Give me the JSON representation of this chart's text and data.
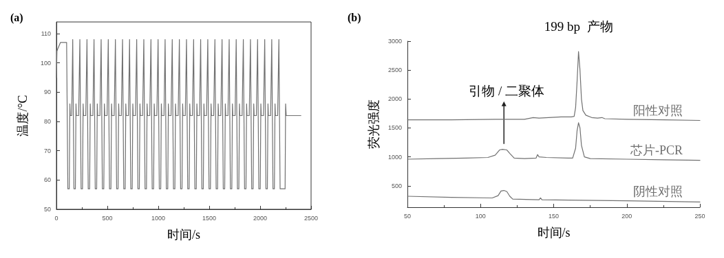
{
  "chart_data": [
    {
      "type": "line",
      "title": "(a)",
      "xlabel": "时间/s",
      "ylabel": "温度/°C",
      "xlim": [
        0,
        2500
      ],
      "xticks": [
        0,
        500,
        1000,
        1500,
        2000,
        2500
      ],
      "ylim": [
        50,
        114
      ],
      "yticks": [
        50,
        60,
        70,
        80,
        90,
        100,
        110
      ],
      "grid": false,
      "color": "#707070",
      "x": [
        0,
        5,
        15,
        40,
        100,
        112,
        126,
        132,
        136,
        150,
        160,
        172,
        186,
        192,
        196,
        218,
        230,
        242,
        256,
        262,
        266,
        288,
        300,
        312,
        326,
        332,
        336,
        358,
        369,
        381,
        395,
        401,
        405,
        427,
        439,
        451,
        465,
        471,
        475,
        497,
        509,
        521,
        535,
        541,
        545,
        567,
        579,
        591,
        605,
        611,
        615,
        637,
        649,
        661,
        675,
        681,
        685,
        707,
        718,
        730,
        744,
        750,
        754,
        776,
        788,
        800,
        814,
        820,
        824,
        846,
        858,
        870,
        884,
        890,
        894,
        916,
        928,
        940,
        954,
        960,
        964,
        986,
        998,
        1010,
        1024,
        1030,
        1034,
        1056,
        1067,
        1079,
        1093,
        1099,
        1103,
        1125,
        1137,
        1149,
        1163,
        1169,
        1173,
        1195,
        1207,
        1219,
        1233,
        1239,
        1243,
        1265,
        1277,
        1289,
        1303,
        1309,
        1313,
        1335,
        1347,
        1359,
        1373,
        1379,
        1383,
        1405,
        1416,
        1428,
        1442,
        1448,
        1452,
        1474,
        1486,
        1498,
        1512,
        1518,
        1522,
        1544,
        1556,
        1568,
        1582,
        1588,
        1592,
        1614,
        1626,
        1638,
        1652,
        1658,
        1662,
        1684,
        1696,
        1708,
        1722,
        1728,
        1732,
        1754,
        1765,
        1777,
        1791,
        1797,
        1801,
        1823,
        1835,
        1847,
        1861,
        1867,
        1871,
        1893,
        1905,
        1917,
        1931,
        1937,
        1941,
        1963,
        1975,
        1987,
        2001,
        2007,
        2011,
        2033,
        2045,
        2057,
        2071,
        2077,
        2081,
        2103,
        2114,
        2126,
        2140,
        2146,
        2150,
        2172,
        2184,
        2196,
        2245,
        2250,
        2256,
        2400
      ],
      "values": [
        95,
        104,
        105,
        107,
        107,
        57,
        57,
        86,
        82,
        82,
        108,
        57,
        57,
        86,
        82,
        82,
        108,
        57,
        57,
        86,
        82,
        82,
        108,
        57,
        57,
        86,
        82,
        82,
        108,
        57,
        57,
        86,
        82,
        82,
        108,
        57,
        57,
        86,
        82,
        82,
        108,
        57,
        57,
        86,
        82,
        82,
        108,
        57,
        57,
        86,
        82,
        82,
        108,
        57,
        57,
        86,
        82,
        82,
        108,
        57,
        57,
        86,
        82,
        82,
        108,
        57,
        57,
        86,
        82,
        82,
        108,
        57,
        57,
        86,
        82,
        82,
        108,
        57,
        57,
        86,
        82,
        82,
        108,
        57,
        57,
        86,
        82,
        82,
        108,
        57,
        57,
        86,
        82,
        82,
        108,
        57,
        57,
        86,
        82,
        82,
        108,
        57,
        57,
        86,
        82,
        82,
        108,
        57,
        57,
        86,
        82,
        82,
        108,
        57,
        57,
        86,
        82,
        82,
        108,
        57,
        57,
        86,
        82,
        82,
        108,
        57,
        57,
        86,
        82,
        82,
        108,
        57,
        57,
        86,
        82,
        82,
        108,
        57,
        57,
        86,
        82,
        82,
        108,
        57,
        57,
        86,
        82,
        82,
        108,
        57,
        57,
        86,
        82,
        82,
        108,
        57,
        57,
        86,
        82,
        82,
        108,
        57,
        57,
        86,
        82,
        82,
        108,
        57,
        57,
        86,
        82,
        82,
        108,
        57,
        57,
        86,
        82,
        82,
        108,
        57,
        57,
        86,
        82,
        82,
        108,
        57,
        57,
        86,
        82,
        82
      ]
    },
    {
      "type": "line",
      "title": "(b)",
      "xlabel": "时间/s",
      "ylabel": "荧光强度",
      "xlim": [
        50,
        250
      ],
      "xticks": [
        50,
        100,
        150,
        200,
        250
      ],
      "ylim": [
        130,
        3000
      ],
      "yticks": [
        500,
        1000,
        1500,
        2000,
        2500,
        3000
      ],
      "grid": false,
      "annotations": [
        {
          "text": "引物 / 二聚体",
          "x": 116,
          "y": 1130
        },
        {
          "text": "199 bp  产物",
          "x": 167,
          "y": 2820
        }
      ],
      "series": [
        {
          "name": "阳性对照",
          "color": "#707070",
          "x": [
            50,
            80,
            110,
            130,
            136,
            140,
            155,
            162,
            164,
            165,
            166,
            167,
            168,
            169,
            170,
            172,
            176,
            180,
            183,
            185,
            200,
            225,
            250
          ],
          "values": [
            1640,
            1640,
            1650,
            1650,
            1680,
            1670,
            1690,
            1690,
            1700,
            1850,
            2300,
            2820,
            2500,
            2000,
            1800,
            1720,
            1680,
            1670,
            1680,
            1660,
            1650,
            1640,
            1630
          ]
        },
        {
          "name": "芯片-PCR",
          "color": "#707070",
          "x": [
            50,
            70,
            90,
            105,
            110,
            113,
            115,
            118,
            120,
            123,
            130,
            138,
            139,
            140,
            145,
            160,
            163,
            165,
            166,
            167,
            168,
            169,
            171,
            175,
            200,
            225,
            250
          ],
          "values": [
            960,
            970,
            980,
            990,
            1030,
            1120,
            1130,
            1120,
            1060,
            980,
            970,
            980,
            1040,
            1000,
            990,
            980,
            980,
            1150,
            1450,
            1590,
            1500,
            1200,
            1000,
            970,
            960,
            950,
            940
          ]
        },
        {
          "name": "阴性对照",
          "color": "#707070",
          "x": [
            50,
            80,
            108,
            112,
            114,
            116,
            118,
            120,
            122,
            140,
            141,
            142,
            170,
            200,
            250
          ],
          "values": [
            320,
            300,
            290,
            330,
            410,
            420,
            400,
            320,
            270,
            260,
            290,
            260,
            250,
            240,
            220
          ]
        }
      ]
    }
  ]
}
